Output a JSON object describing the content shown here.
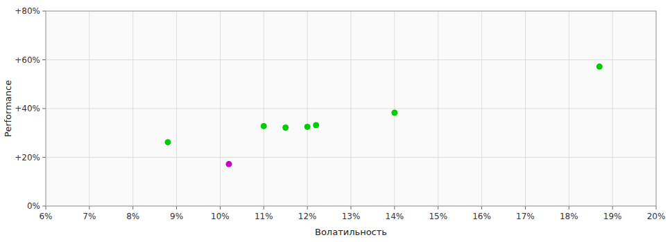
{
  "chart_data": {
    "type": "scatter",
    "xlabel": "Волатильность",
    "ylabel": "Performance",
    "xlim": [
      0.06,
      0.2
    ],
    "ylim": [
      0.0,
      0.8
    ],
    "xticks": [
      {
        "value": 0.06,
        "label": "6%"
      },
      {
        "value": 0.07,
        "label": "7%"
      },
      {
        "value": 0.08,
        "label": "8%"
      },
      {
        "value": 0.09,
        "label": "9%"
      },
      {
        "value": 0.1,
        "label": "10%"
      },
      {
        "value": 0.11,
        "label": "11%"
      },
      {
        "value": 0.12,
        "label": "12%"
      },
      {
        "value": 0.13,
        "label": "13%"
      },
      {
        "value": 0.14,
        "label": "14%"
      },
      {
        "value": 0.15,
        "label": "15%"
      },
      {
        "value": 0.16,
        "label": "16%"
      },
      {
        "value": 0.17,
        "label": "17%"
      },
      {
        "value": 0.18,
        "label": "18%"
      },
      {
        "value": 0.19,
        "label": "19%"
      },
      {
        "value": 0.2,
        "label": "20%"
      }
    ],
    "yticks": [
      {
        "value": 0.0,
        "label": "0%"
      },
      {
        "value": 0.2,
        "label": "+20%"
      },
      {
        "value": 0.4,
        "label": "+40%"
      },
      {
        "value": 0.6,
        "label": "+60%"
      },
      {
        "value": 0.8,
        "label": "+80%"
      }
    ],
    "grid": true,
    "series": [
      {
        "color": "#00cc00",
        "x": [
          0.088,
          0.11,
          0.115,
          0.12,
          0.122,
          0.14,
          0.187
        ],
        "values": [
          0.262,
          0.328,
          0.322,
          0.325,
          0.332,
          0.383,
          0.572
        ]
      },
      {
        "color": "#cc00cc",
        "x": [
          0.102
        ],
        "values": [
          0.172
        ]
      }
    ]
  }
}
